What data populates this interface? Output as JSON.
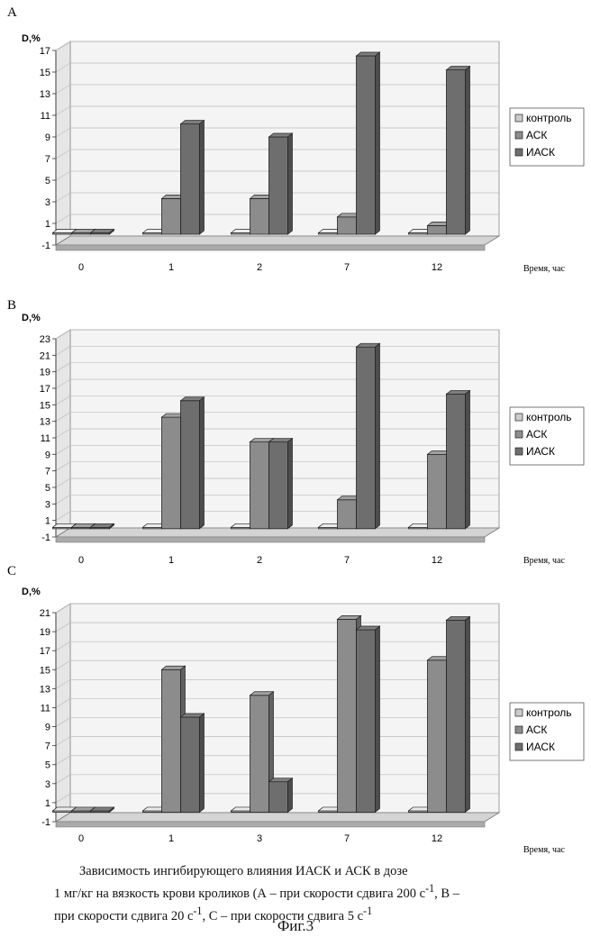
{
  "chart_data": [
    {
      "type": "bar",
      "panel": "A",
      "ylabel": "D,%",
      "xlabel": "Время, час",
      "categories": [
        "0",
        "1",
        "2",
        "7",
        "12"
      ],
      "yticks": [
        -1,
        1,
        3,
        5,
        7,
        9,
        11,
        13,
        15,
        17
      ],
      "ylim": [
        -1,
        17
      ],
      "series": [
        {
          "name": "контроль",
          "values": [
            0,
            0,
            0,
            0,
            0
          ]
        },
        {
          "name": "АСК",
          "values": [
            0,
            3.3,
            3.3,
            1.6,
            0.8
          ]
        },
        {
          "name": "ИАСК",
          "values": [
            0,
            10.2,
            9,
            16.5,
            15.2
          ]
        }
      ],
      "legend_position": "right",
      "grid": true
    },
    {
      "type": "bar",
      "panel": "B",
      "ylabel": "D,%",
      "xlabel": "Время, час",
      "categories": [
        "0",
        "1",
        "2",
        "7",
        "12"
      ],
      "yticks": [
        -1,
        1,
        3,
        5,
        7,
        9,
        11,
        13,
        15,
        17,
        19,
        21,
        23
      ],
      "ylim": [
        -1,
        23
      ],
      "series": [
        {
          "name": "контроль",
          "values": [
            0,
            0,
            0,
            0,
            0
          ]
        },
        {
          "name": "АСК",
          "values": [
            0,
            13.5,
            10.5,
            3.5,
            9
          ]
        },
        {
          "name": "ИАСК",
          "values": [
            0,
            15.5,
            10.5,
            22,
            16.3
          ]
        }
      ],
      "legend_position": "right",
      "grid": true
    },
    {
      "type": "bar",
      "panel": "C",
      "ylabel": "D,%",
      "xlabel": "Время, час",
      "categories": [
        "0",
        "1",
        "3",
        "7",
        "12"
      ],
      "yticks": [
        -1,
        1,
        3,
        5,
        7,
        9,
        11,
        13,
        15,
        17,
        19,
        21
      ],
      "ylim": [
        -1,
        21
      ],
      "series": [
        {
          "name": "контроль",
          "values": [
            0,
            0,
            0,
            0,
            0
          ]
        },
        {
          "name": "АСК",
          "values": [
            0,
            15,
            12.3,
            20.3,
            16
          ]
        },
        {
          "name": "ИАСК",
          "values": [
            0,
            10,
            3.2,
            19.2,
            20.2
          ]
        }
      ],
      "legend_position": "right",
      "grid": true
    }
  ],
  "colors": {
    "control": "#cccccc",
    "ask": "#8c8c8c",
    "iask": "#6e6e6e",
    "grid": "#bdbdbd"
  },
  "caption": {
    "line1": "Зависимость ингибирующего влияния ИАСК и АСК в дозе",
    "line2": "1 мг/кг на вязкость крови кроликов (А – при скорости сдвига 200 с",
    "line2_sup": "-1",
    "line2_end": ", В –",
    "line3": "при скорости сдвига 20 с",
    "line3_sup": "-1",
    "line3_mid": ", С – при скорости сдвига 5 с",
    "line3_sup2": "-1"
  },
  "figure_label": "Фиг.3"
}
